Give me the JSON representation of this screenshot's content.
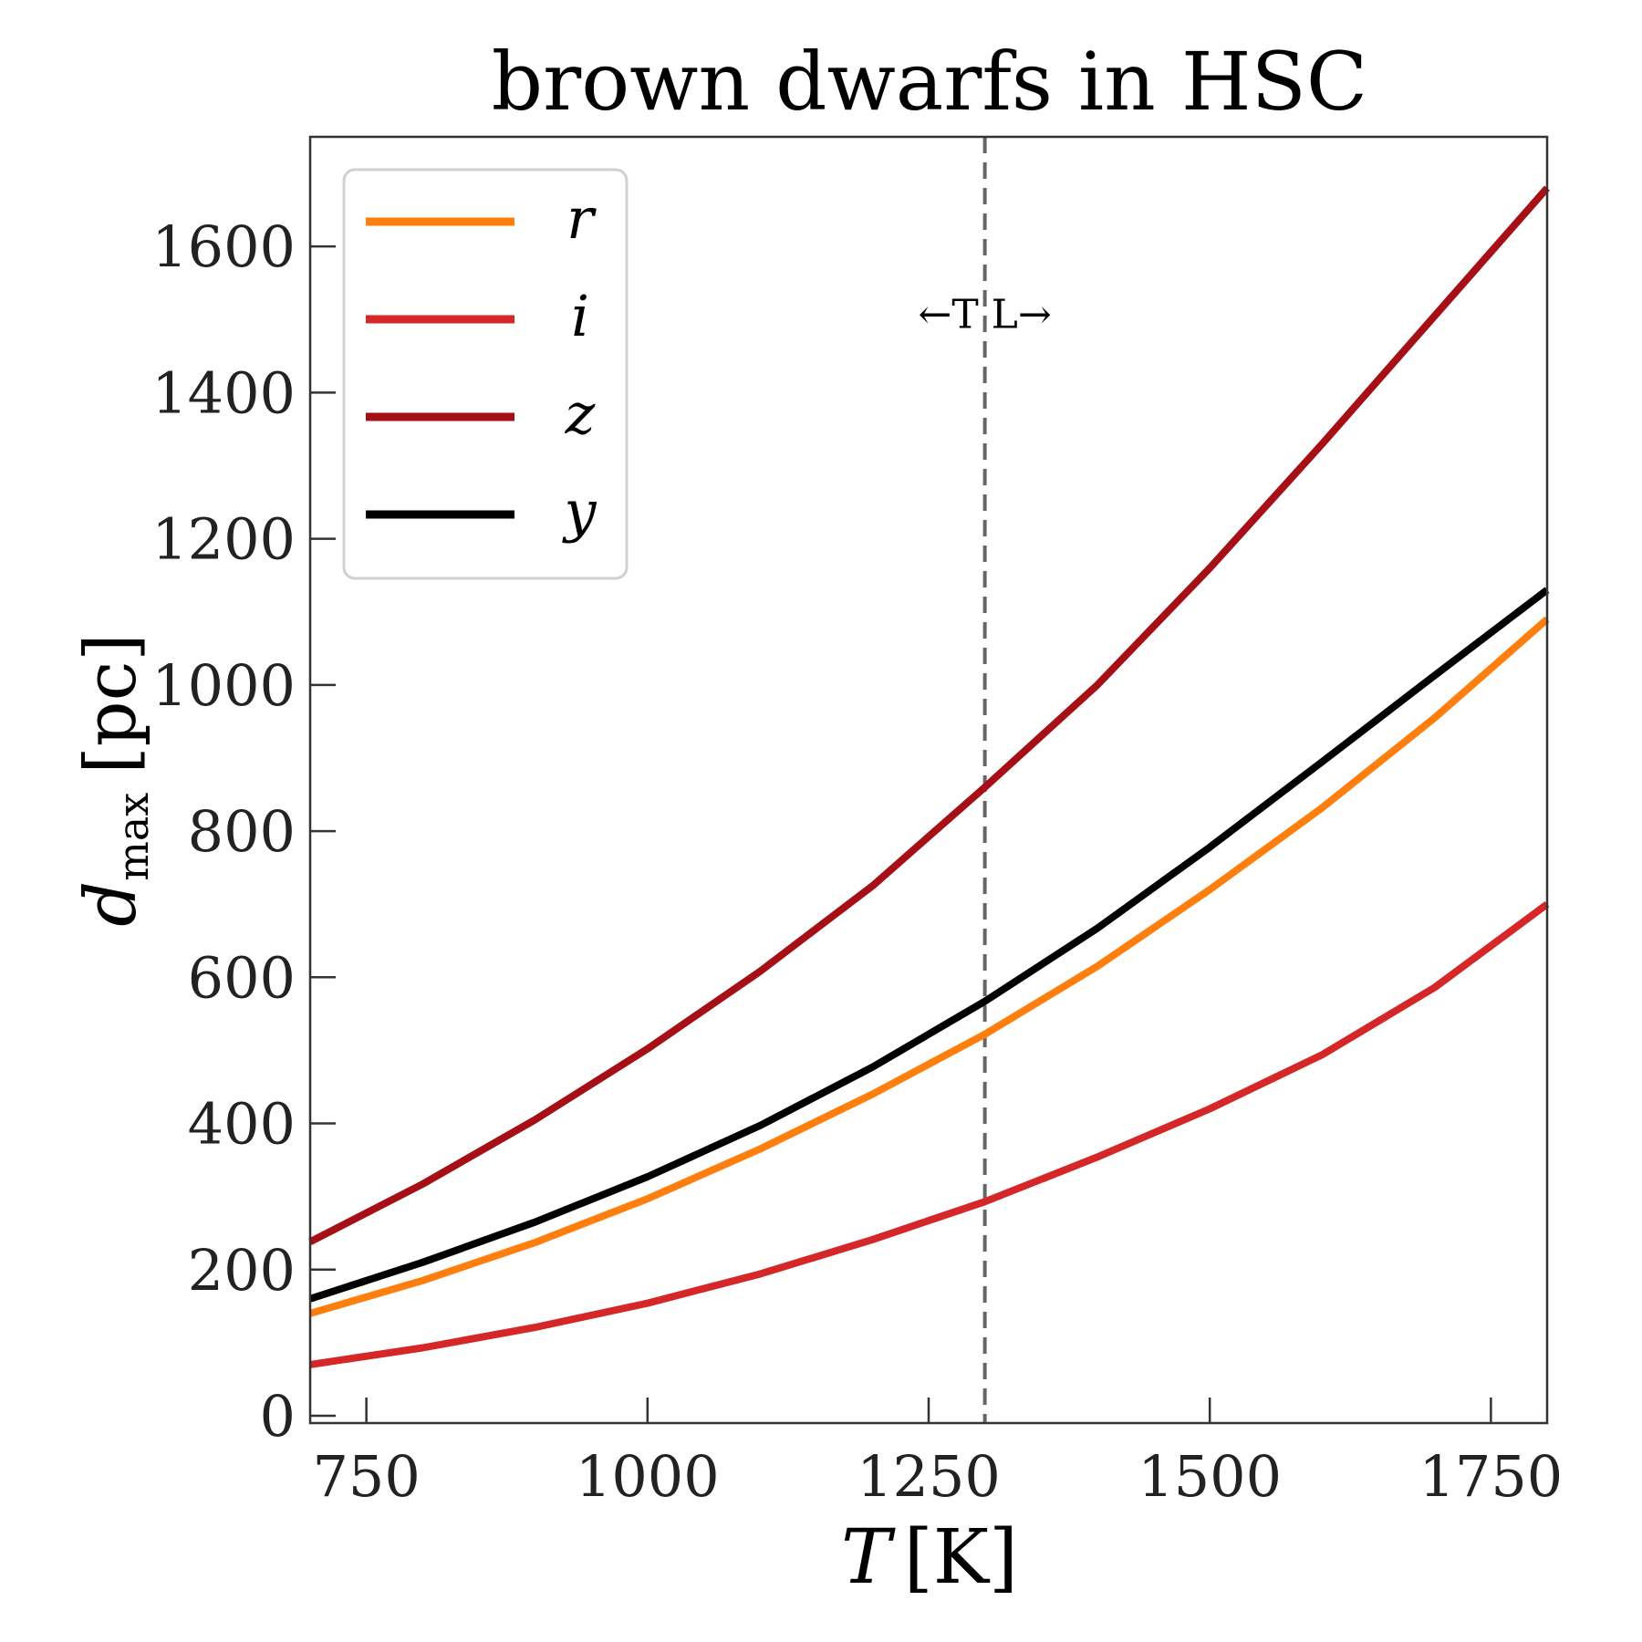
{
  "chart_data": {
    "type": "line",
    "title": "brown dwarfs in HSC",
    "xlabel": {
      "symbol": "T",
      "unit": "[K]"
    },
    "ylabel": {
      "symbol": "d",
      "subscript": "max",
      "unit": "[pc]"
    },
    "xlim": [
      700,
      1800
    ],
    "ylim": [
      -10,
      1750
    ],
    "xticks": [
      750,
      1000,
      1250,
      1500,
      1750
    ],
    "yticks": [
      0,
      200,
      400,
      600,
      800,
      1000,
      1200,
      1400,
      1600
    ],
    "grid": false,
    "legend_position": "top-left",
    "x": [
      700,
      800,
      900,
      1000,
      1100,
      1200,
      1300,
      1400,
      1500,
      1600,
      1700,
      1800
    ],
    "series": [
      {
        "name": "r",
        "color": "#ff7f0e",
        "values": [
          140,
          185,
          237,
          297,
          365,
          440,
          522,
          615,
          720,
          832,
          955,
          1090
        ]
      },
      {
        "name": "i",
        "color": "#d62728",
        "values": [
          70,
          93,
          121,
          154,
          194,
          241,
          293,
          354,
          420,
          494,
          586,
          700
        ]
      },
      {
        "name": "z",
        "color": "#a50f15",
        "values": [
          238,
          317,
          405,
          502,
          608,
          725,
          860,
          1000,
          1160,
          1330,
          1505,
          1680
        ]
      },
      {
        "name": "y",
        "color": "#000000",
        "values": [
          160,
          210,
          265,
          327,
          397,
          477,
          567,
          667,
          778,
          895,
          1013,
          1130
        ]
      }
    ],
    "vline": {
      "x": 1300,
      "color": "#666666",
      "style": "dashed"
    },
    "annotation": {
      "text": "←T L→",
      "x": 1300,
      "y": 1510
    }
  }
}
